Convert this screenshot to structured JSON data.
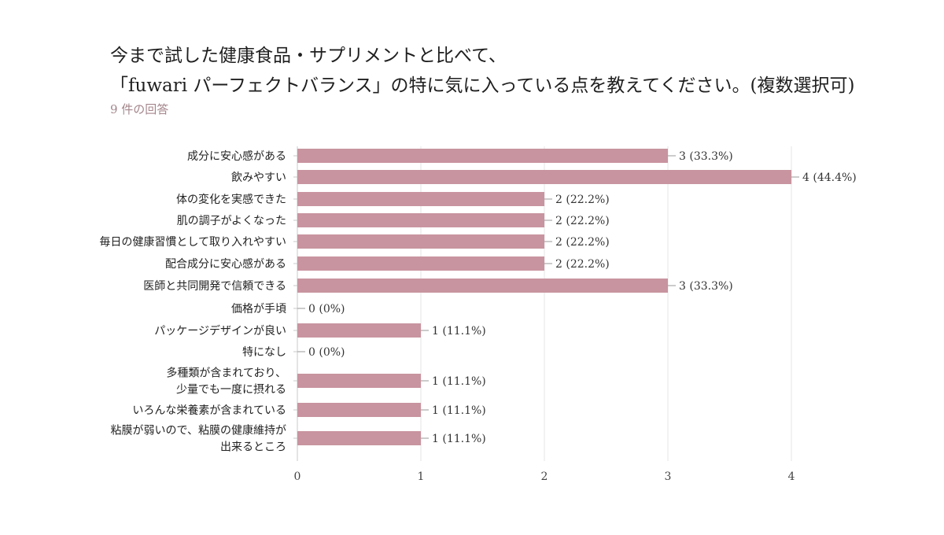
{
  "header": {
    "title_line1": "今まで試した健康食品・サプリメントと比べて、",
    "title_line2": "「fuwari パーフェクトバランス」の特に気に入っている点を教えてください。(複数選択可)",
    "responses": "9 件の回答"
  },
  "colors": {
    "bar": "#c8949f",
    "grid": "#e4e4e4",
    "axis": "#c9c9c9"
  },
  "chart_data": {
    "type": "bar",
    "orientation": "horizontal",
    "categories": [
      [
        "成分に安心感がある"
      ],
      [
        "飲みやすい"
      ],
      [
        "体の変化を実感できた"
      ],
      [
        "肌の調子がよくなった"
      ],
      [
        "毎日の健康習慣として取り入れやすい"
      ],
      [
        "配合成分に安心感がある"
      ],
      [
        "医師と共同開発で信頼できる"
      ],
      [
        "価格が手頃"
      ],
      [
        "パッケージデザインが良い"
      ],
      [
        "特になし"
      ],
      [
        "多種類が含まれており、",
        "少量でも一度に摂れる"
      ],
      [
        "いろんな栄養素が含まれている"
      ],
      [
        "粘膜が弱いので、粘膜の健康維持が",
        "出来るところ"
      ]
    ],
    "values": [
      3,
      4,
      2,
      2,
      2,
      2,
      3,
      0,
      1,
      0,
      1,
      1,
      1
    ],
    "value_labels": [
      "3 (33.3%)",
      "4 (44.4%)",
      "2 (22.2%)",
      "2 (22.2%)",
      "2 (22.2%)",
      "2 (22.2%)",
      "3 (33.3%)",
      "0 (0%)",
      "1 (11.1%)",
      "0 (0%)",
      "1 (11.1%)",
      "1 (11.1%)",
      "1 (11.1%)"
    ],
    "x_ticks": [
      "0",
      "1",
      "2",
      "3",
      "4"
    ],
    "xlim": [
      0,
      4
    ],
    "grid": true
  }
}
